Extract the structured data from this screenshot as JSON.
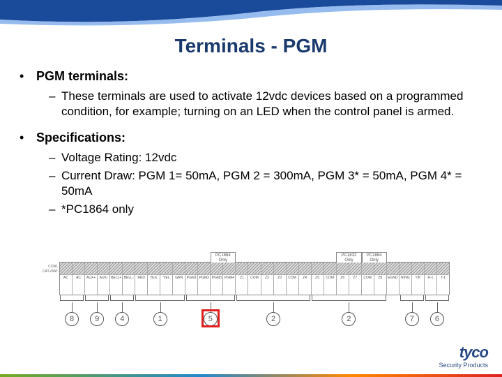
{
  "colors": {
    "title": "#1a3a6e",
    "swoosh_primary": "#1a4a9a",
    "swoosh_highlight": "#6aa0e8",
    "highlight_box": "#e02020",
    "logo": "#2a4a85"
  },
  "title": "Terminals - PGM",
  "sections": [
    {
      "heading": "PGM terminals:",
      "items": [
        "These terminals are used to activate 12vdc devices based on a programmed condition, for example; turning on an LED when the control panel is armed."
      ]
    },
    {
      "heading": "Specifications:",
      "items": [
        "Voltage Rating: 12vdc",
        "Current Draw: PGM 1= 50mA, PGM 2 = 300mA, PGM 3* = 50mA, PGM 4* = 50mA",
        "*PC1864 only"
      ]
    }
  ],
  "diagram": {
    "terminals": [
      "AC",
      "AC",
      "AUX+",
      "AUX-",
      "BELL+",
      "BELL-",
      "RED",
      "BLK",
      "YEL",
      "GRN",
      "PGM1",
      "PGM2",
      "PGM3",
      "PGM4",
      "Z1",
      "COM",
      "Z2",
      "Z3",
      "COM",
      "Z4",
      "Z5",
      "COM",
      "Z6",
      "Z7",
      "COM",
      "Z8",
      "EGND",
      "RING",
      "TIP",
      "R-1",
      "T-1"
    ],
    "only_labels": [
      {
        "text": "PC1864\nOnly",
        "start": 12,
        "span": 2
      },
      {
        "text": "PC1832\nOnly",
        "start": 22,
        "span": 2
      },
      {
        "text": "PC1864\nOnly",
        "start": 24,
        "span": 2
      }
    ],
    "left_side_labels": "CON1\nDAT+BAT",
    "callout_highlighted": "5",
    "groups": [
      {
        "num": "8",
        "start": 0,
        "span": 2
      },
      {
        "num": "9",
        "start": 2,
        "span": 2
      },
      {
        "num": "4",
        "start": 4,
        "span": 2
      },
      {
        "num": "1",
        "start": 6,
        "span": 4
      },
      {
        "num": "5",
        "start": 10,
        "span": 4
      },
      {
        "num": "2",
        "start": 14,
        "span": 6
      },
      {
        "num": "2",
        "start": 20,
        "span": 6
      },
      {
        "num": "7",
        "start": 27,
        "span": 2
      },
      {
        "num": "6",
        "start": 29,
        "span": 2
      }
    ]
  },
  "footer": {
    "brand": "tyco",
    "sub": "Security Products"
  }
}
